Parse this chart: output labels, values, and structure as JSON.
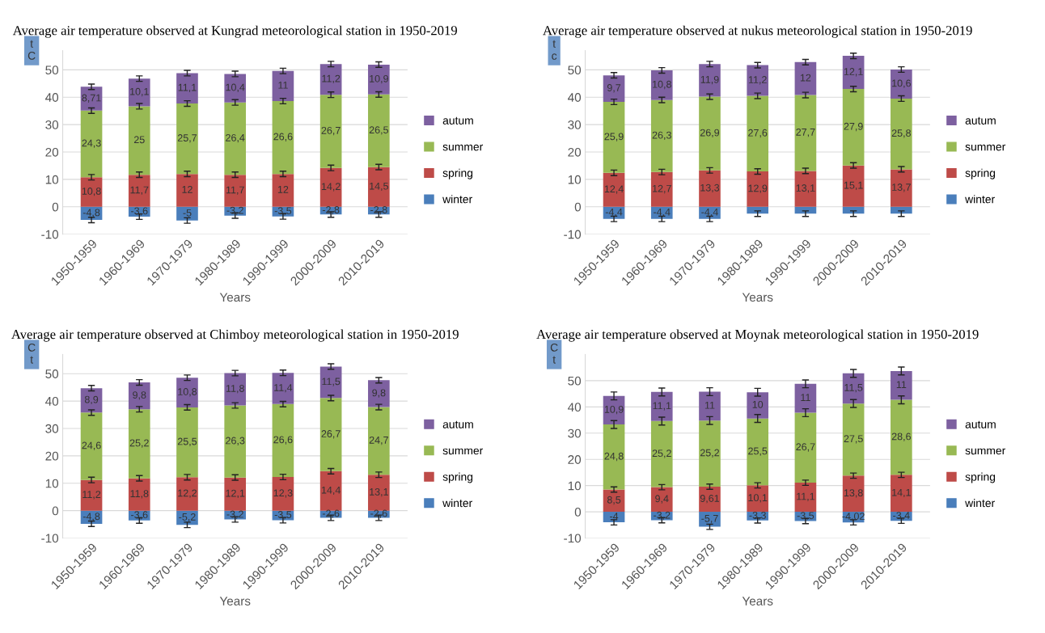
{
  "chart_data": [
    {
      "type": "bar",
      "stacked": true,
      "title": "Average air temperature observed at Kungrad meteorological station in 1950-2019",
      "ylabel": "t\nC",
      "xlabel": "Years",
      "categories": [
        "1950-1959",
        "1960-1969",
        "1970-1979",
        "1980-1989",
        "1990-1999",
        "2000-2009",
        "2010-2019"
      ],
      "ylim": [
        -10,
        57
      ],
      "yticks": [
        -10,
        0,
        10,
        20,
        30,
        40,
        50
      ],
      "grid": "y",
      "legend": "right",
      "series": [
        {
          "name": "winter",
          "color": "#4a7ebb",
          "values": [
            -4.8,
            -3.6,
            -5,
            -3.2,
            -3.5,
            -2.8,
            -2.8
          ],
          "value_labels": [
            "-4,8",
            "-3,6",
            "-5",
            "-3,2",
            "-3,5",
            "-2,8",
            "-2,8"
          ],
          "errors": [
            1,
            1,
            1,
            1,
            1,
            1,
            1
          ]
        },
        {
          "name": "spring",
          "color": "#be4b48",
          "values": [
            10.8,
            11.7,
            12,
            11.7,
            12,
            14.2,
            14.5
          ],
          "value_labels": [
            "10,8",
            "11,7",
            "12",
            "11,7",
            "12",
            "14,2",
            "14,5"
          ],
          "errors": [
            1,
            1,
            1,
            1,
            1,
            1,
            1
          ]
        },
        {
          "name": "summer",
          "color": "#98b954",
          "values": [
            24.3,
            25,
            25.7,
            26.4,
            26.6,
            26.7,
            26.5
          ],
          "value_labels": [
            "24,3",
            "25",
            "25,7",
            "26,4",
            "26,6",
            "26,7",
            "26,5"
          ],
          "errors": [
            1,
            1,
            1,
            1,
            1,
            1,
            1
          ]
        },
        {
          "name": "autum",
          "color": "#7d60a0",
          "values": [
            8.71,
            10.1,
            11.1,
            10.4,
            11,
            11.2,
            10.9
          ],
          "value_labels": [
            "8,71",
            "10,1",
            "11,1",
            "10,4",
            "11",
            "11,2",
            "10,9"
          ],
          "errors": [
            1,
            1,
            1,
            1,
            1,
            1,
            1
          ]
        }
      ]
    },
    {
      "type": "bar",
      "stacked": true,
      "title": "Average air temperature observed at nukus meteorological station in 1950-2019",
      "ylabel": "t\nc",
      "xlabel": "Years",
      "categories": [
        "1950-1959",
        "1960-1969",
        "1970-1979",
        "1980-1989",
        "1990-1999",
        "2000-2009",
        "2010-2019"
      ],
      "ylim": [
        -10,
        57
      ],
      "yticks": [
        -10,
        0,
        10,
        20,
        30,
        40,
        50
      ],
      "grid": "y",
      "legend": "right",
      "series": [
        {
          "name": "winter",
          "color": "#4a7ebb",
          "values": [
            -4.4,
            -4.4,
            -4.4,
            -2.5,
            -2.5,
            -2.5,
            -2.5
          ],
          "value_labels": [
            "-4,4",
            "-4,4",
            "-4,4",
            null,
            null,
            null,
            null
          ],
          "errors": [
            1,
            1,
            1,
            1,
            1,
            1,
            1
          ]
        },
        {
          "name": "spring",
          "color": "#be4b48",
          "values": [
            12.4,
            12.7,
            13.3,
            12.9,
            13.1,
            15.1,
            13.7
          ],
          "value_labels": [
            "12,4",
            "12,7",
            "13,3",
            "12,9",
            "13,1",
            "15,1",
            "13,7"
          ],
          "errors": [
            1,
            1,
            1,
            1,
            1,
            1,
            1
          ]
        },
        {
          "name": "summer",
          "color": "#98b954",
          "values": [
            25.9,
            26.3,
            26.9,
            27.6,
            27.7,
            27.9,
            25.8
          ],
          "value_labels": [
            "25,9",
            "26,3",
            "26,9",
            "27,6",
            "27,7",
            "27,9",
            "25,8"
          ],
          "errors": [
            1,
            1,
            1,
            1,
            1,
            1,
            1
          ]
        },
        {
          "name": "autum",
          "color": "#7d60a0",
          "values": [
            9.7,
            10.8,
            11.9,
            11.2,
            12,
            12.1,
            10.6
          ],
          "value_labels": [
            "9,7",
            "10,8",
            "11,9",
            "11,2",
            "12",
            "12,1",
            "10,6"
          ],
          "errors": [
            1,
            1,
            1,
            1,
            1,
            1,
            1
          ]
        }
      ]
    },
    {
      "type": "bar",
      "stacked": true,
      "title": "Average air temperature observed at Chimboy meteorological station in 1950-2019",
      "ylabel": "C\nt",
      "xlabel": "Years",
      "categories": [
        "1950-1959",
        "1960-1969",
        "1970-1979",
        "1980-1989",
        "1990-1999",
        "2000-2009",
        "2010-2019"
      ],
      "ylim": [
        -10,
        57
      ],
      "yticks": [
        -10,
        0,
        10,
        20,
        30,
        40,
        50
      ],
      "grid": "y",
      "legend": "right",
      "series": [
        {
          "name": "winter",
          "color": "#4a7ebb",
          "values": [
            -4.8,
            -3.6,
            -5.2,
            -3.2,
            -3.5,
            -2.6,
            -2.6
          ],
          "value_labels": [
            "-4,8",
            "-3,6",
            "-5,2",
            "-3,2",
            "-3,5",
            "-2,6",
            "-2,6"
          ],
          "errors": [
            1,
            1,
            1,
            1,
            1,
            1,
            1
          ]
        },
        {
          "name": "spring",
          "color": "#be4b48",
          "values": [
            11.2,
            11.8,
            12.2,
            12.1,
            12.3,
            14.4,
            13.1
          ],
          "value_labels": [
            "11,2",
            "11,8",
            "12,2",
            "12,1",
            "12,3",
            "14,4",
            "13,1"
          ],
          "errors": [
            1,
            1,
            1,
            1,
            1,
            1,
            1
          ]
        },
        {
          "name": "summer",
          "color": "#98b954",
          "values": [
            24.6,
            25.2,
            25.5,
            26.3,
            26.6,
            26.7,
            24.7
          ],
          "value_labels": [
            "24,6",
            "25,2",
            "25,5",
            "26,3",
            "26,6",
            "26,7",
            "24,7"
          ],
          "errors": [
            1,
            1,
            1,
            1,
            1,
            1,
            1
          ]
        },
        {
          "name": "autum",
          "color": "#7d60a0",
          "values": [
            8.9,
            9.8,
            10.8,
            11.8,
            11.4,
            11.5,
            9.8
          ],
          "value_labels": [
            "8,9",
            "9,8",
            "10,8",
            "11,8",
            "11,4",
            "11,5",
            "9,8"
          ],
          "errors": [
            1,
            1,
            1,
            1,
            1,
            1,
            1
          ]
        }
      ]
    },
    {
      "type": "bar",
      "stacked": true,
      "title": "Average air temperature observed at Moynak meteorological station in 1950-2019",
      "ylabel": "C\nt",
      "xlabel": "Years",
      "categories": [
        "1950-1959",
        "1960-1969",
        "1970-1979",
        "1980-1989",
        "1990-1999",
        "2000-2009",
        "2010-2019"
      ],
      "ylim": [
        -10,
        60
      ],
      "yticks": [
        -10,
        0,
        10,
        20,
        30,
        40,
        50
      ],
      "grid": "y",
      "legend": "right",
      "series": [
        {
          "name": "winter",
          "color": "#4a7ebb",
          "values": [
            -4,
            -3.2,
            -5.7,
            -3.3,
            -3.5,
            -4.02,
            -3.4
          ],
          "value_labels": [
            "-4",
            "-3,2",
            "-5,7",
            "-3,3",
            "-3,5",
            "-4,02",
            "-3,4"
          ],
          "errors": [
            1,
            1,
            1,
            1,
            1,
            1,
            1
          ]
        },
        {
          "name": "spring",
          "color": "#be4b48",
          "values": [
            8.5,
            9.4,
            9.61,
            10.1,
            11.1,
            13.8,
            14.1
          ],
          "value_labels": [
            "8,5",
            "9,4",
            "9,61",
            "10,1",
            "11,1",
            "13,8",
            "14,1"
          ],
          "errors": [
            1,
            1,
            1,
            1,
            1,
            1,
            1
          ]
        },
        {
          "name": "summer",
          "color": "#98b954",
          "values": [
            24.8,
            25.2,
            25.2,
            25.5,
            26.7,
            27.5,
            28.6
          ],
          "value_labels": [
            "24,8",
            "25,2",
            "25,2",
            "25,5",
            "26,7",
            "27,5",
            "28,6"
          ],
          "errors": [
            1.5,
            1.5,
            1.5,
            1.5,
            1.5,
            1.5,
            1.5
          ]
        },
        {
          "name": "autum",
          "color": "#7d60a0",
          "values": [
            10.9,
            11.1,
            11,
            10,
            11,
            11.5,
            11
          ],
          "value_labels": [
            "10,9",
            "11,1",
            "11",
            "10",
            "11",
            "11,5",
            "11"
          ],
          "errors": [
            1.5,
            1.5,
            1.5,
            1.5,
            1.5,
            1.5,
            1.5
          ]
        }
      ]
    }
  ]
}
